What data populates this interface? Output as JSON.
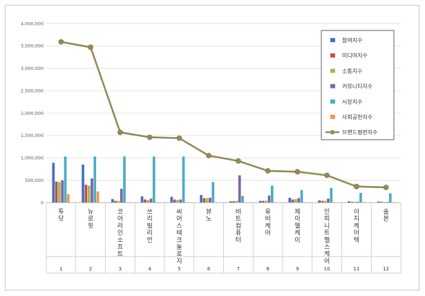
{
  "chart_data": {
    "type": "bar",
    "categories": [
      {
        "index": "1",
        "name": "투닷"
      },
      {
        "index": "2",
        "name": "뉴로핏"
      },
      {
        "index": "3",
        "name": "코어라인소프트"
      },
      {
        "index": "4",
        "name": "쓰리빌리언"
      },
      {
        "index": "5",
        "name": "씨어스테크놀로지"
      },
      {
        "index": "6",
        "name": "뷰노"
      },
      {
        "index": "7",
        "name": "비트컴퓨터"
      },
      {
        "index": "8",
        "name": "유비케어"
      },
      {
        "index": "9",
        "name": "제이엘케이"
      },
      {
        "index": "10",
        "name": "인피니트헬스케어"
      },
      {
        "index": "11",
        "name": "이지케어텍"
      },
      {
        "index": "12",
        "name": "솔본"
      }
    ],
    "y_ticks": [
      "0",
      "500,000",
      "1,000,000",
      "1,500,000",
      "2,000,000",
      "2,500,000",
      "3,000,000",
      "3,500,000",
      "4,000,000"
    ],
    "ylim": [
      0,
      4000000
    ],
    "grid": true,
    "legend_position": "top-right",
    "series": [
      {
        "name": "참여지수",
        "color": "#4472c4",
        "kind": "bar",
        "values": [
          890000,
          850000,
          80000,
          140000,
          130000,
          170000,
          30000,
          40000,
          110000,
          50000,
          30000,
          25000
        ]
      },
      {
        "name": "미디어지수",
        "color": "#c0504d",
        "kind": "bar",
        "values": [
          470000,
          400000,
          40000,
          70000,
          70000,
          100000,
          30000,
          40000,
          70000,
          40000,
          20000,
          20000
        ]
      },
      {
        "name": "소통지수",
        "color": "#9bbb59",
        "kind": "bar",
        "values": [
          460000,
          380000,
          40000,
          60000,
          60000,
          100000,
          40000,
          40000,
          80000,
          40000,
          20000,
          15000
        ]
      },
      {
        "name": "커뮤니티지수",
        "color": "#8064a2",
        "kind": "bar",
        "values": [
          500000,
          540000,
          310000,
          90000,
          70000,
          110000,
          610000,
          160000,
          100000,
          90000,
          20000,
          15000
        ]
      },
      {
        "name": "시장지수",
        "color": "#4bacc6",
        "kind": "bar",
        "values": [
          1030000,
          1030000,
          1030000,
          1030000,
          1030000,
          460000,
          150000,
          380000,
          280000,
          330000,
          220000,
          210000
        ]
      },
      {
        "name": "사회공헌지수",
        "color": "#f79646",
        "kind": "bar",
        "values": [
          190000,
          250000,
          10000,
          10000,
          10000,
          10000,
          10000,
          10000,
          10000,
          10000,
          10000,
          10000
        ]
      },
      {
        "name": "브랜드평판지수",
        "color": "#948a54",
        "kind": "line",
        "values": [
          3590000,
          3470000,
          1570000,
          1460000,
          1440000,
          1050000,
          930000,
          710000,
          690000,
          610000,
          360000,
          340000
        ]
      }
    ]
  }
}
